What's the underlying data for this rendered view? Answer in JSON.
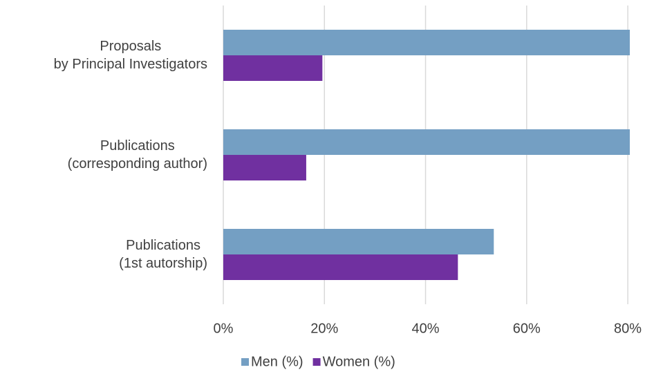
{
  "chart_data": {
    "type": "bar",
    "orientation": "horizontal",
    "categories": [
      "Proposals\nby Principal Investigators",
      "Publications\n(corresponding author)",
      "Publications\n(1st autorship)"
    ],
    "series": [
      {
        "name": "Men (%)",
        "color": "#749fc3",
        "values": [
          80.4,
          83.6,
          53.5
        ]
      },
      {
        "name": "Women (%)",
        "color": "#7030a0",
        "values": [
          19.6,
          16.4,
          46.4
        ]
      }
    ],
    "xlim": [
      0,
      80.4
    ],
    "xticks": [
      {
        "value": 0,
        "label": "0%"
      },
      {
        "value": 20,
        "label": "20%"
      },
      {
        "value": 40,
        "label": "40%"
      },
      {
        "value": 60,
        "label": "60%"
      },
      {
        "value": 80,
        "label": "80%"
      }
    ],
    "grid": true,
    "legend": "bottom"
  }
}
